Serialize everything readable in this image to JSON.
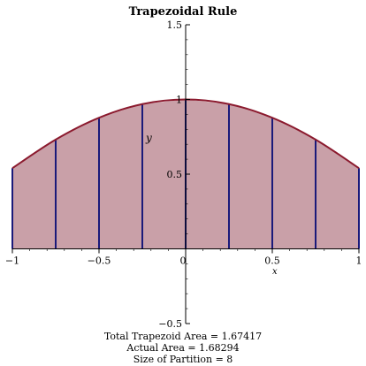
{
  "chart_data": {
    "type": "area",
    "title": "Trapezoidal Rule",
    "xlabel": "x",
    "ylabel": "y",
    "xlim": [
      -1,
      1
    ],
    "ylim": [
      -0.5,
      1.5
    ],
    "x_ticks": [
      -1,
      -0.5,
      0,
      0.5,
      1
    ],
    "x_tick_labels": [
      "−1",
      "−0.5",
      "0",
      "0.5",
      "1"
    ],
    "y_ticks": [
      -0.5,
      0.5,
      1,
      1.5
    ],
    "y_tick_labels": [
      "−0.5",
      "0.5",
      "1",
      "1.5"
    ],
    "partition_x": [
      -1,
      -0.75,
      -0.5,
      -0.25,
      0,
      0.25,
      0.5,
      0.75,
      1
    ],
    "partition_y": [
      0.5403,
      0.7317,
      0.8776,
      0.9689,
      1.0,
      0.9689,
      0.8776,
      0.7317,
      0.5403
    ],
    "colors": {
      "fill": "#c9a0a8",
      "partition_lines": "#1a1a7a",
      "curve": "#8b1a2e",
      "axes": "#000000"
    },
    "captions": [
      "Total Trapezoid Area = 1.67417",
      "Actual Area = 1.68294",
      "Size of Partition = 8"
    ]
  }
}
